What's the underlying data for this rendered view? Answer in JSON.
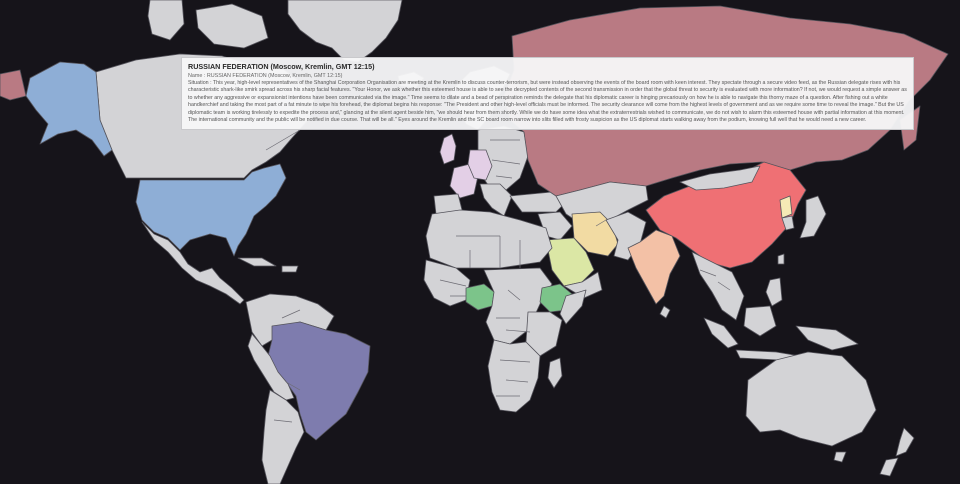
{
  "colors": {
    "ocean": "#16141a",
    "neutral_country": "#d3d3d6",
    "russia": "#b97a83",
    "china": "#ef7074",
    "usa": "#8eaed6",
    "alaska": "#8eaed6",
    "brazil": "#7e7cae",
    "india": "#f3c1a6",
    "iran": "#f2dba3",
    "saudi_arabia": "#dbe7a5",
    "nigeria": "#7cc48a",
    "ethiopia": "#7cc48a",
    "uk": "#e3cfe6",
    "france": "#e3cfe6",
    "germany": "#e3cfe6",
    "north_korea": "#f6e9b5"
  },
  "tooltip": {
    "title": "RUSSIAN FEDERATION (Moscow, Kremlin, GMT 12:15)",
    "name": "Name : RUSSIAN FEDERATION (Moscow, Kremlin, GMT 12:15)",
    "situation": "Situation : This year, high-level representatives of the Shanghai Corporation Organisation are meeting at the Kremlin to discuss counter-terrorism, but were instead observing the events of the board room with keen interest. They spectate through a secure video feed, as the Russian delegate rises with his characteristic shark-like smirk spread across his sharp facial features. \"Your Honor, we ask whether this esteemed house is able to see the decrypted contents of the second transmission in order that the global threat to security is evaluated with more information? If not, we would request a simple answer as to whether any aggressive or expansionist intentions have been communicated via the image.\" Time seems to dilate and a bead of perspiration reminds the delegate that his diplomatic career is hinging precariously on how he is able to navigate this thorny maze of a question. After fishing out a white handkerchief and taking the most part of a fat minute to wipe his forehead, the diplomat begins his response: \"The President and other high-level officials must be informed. The security clearance will come from the highest levels of government and as we require some time to reveal the image.\" But the US diplomatic team is working tirelessly to expedite the process and,\" glancing at the silent agent beside him, \"we should hear from them shortly. While we do have some idea what the extraterrestrials wished to communicate, we do not wish to alarm this esteemed house with partial information at this moment. The international community and the public will be notified in due course. That will be all.\" Eyes around the Kremlin and the SC board room narrow into slits filled with frosty suspicion as the US diplomat starts walking away from the podium, knowing full well that he would need a new career."
  }
}
